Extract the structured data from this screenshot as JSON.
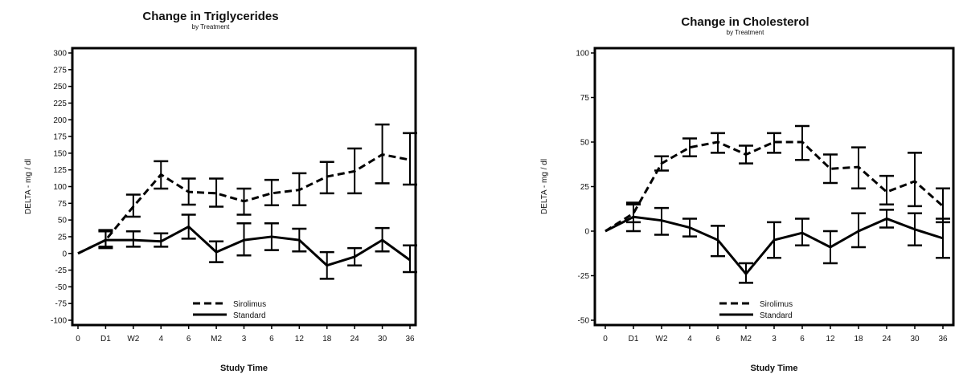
{
  "chart_data": [
    {
      "type": "line",
      "title": "Change in Triglycerides",
      "subtitle": "by Treatment",
      "xlabel": "Study Time",
      "ylabel": "DELTA - mg / dl",
      "categories": [
        "0",
        "D1",
        "W2",
        "4",
        "6",
        "M2",
        "3",
        "6",
        "12",
        "18",
        "24",
        "30",
        "36"
      ],
      "ylim": [
        -100,
        300
      ],
      "yticks": [
        "300",
        "275",
        "250",
        "225",
        "200",
        "175",
        "150",
        "125",
        "100",
        "75",
        "50",
        "25",
        "0",
        "-25",
        "-50",
        "-75",
        "-100"
      ],
      "grid": false,
      "legend_position": "bottom-center",
      "series": [
        {
          "name": "Sirolimus",
          "style": "dashed",
          "values": [
            0,
            20,
            70,
            118,
            92,
            90,
            78,
            90,
            95,
            115,
            123,
            148,
            140
          ],
          "err_low": [
            0,
            10,
            55,
            97,
            73,
            70,
            58,
            72,
            72,
            90,
            90,
            105,
            103
          ],
          "err_high": [
            0,
            35,
            88,
            138,
            112,
            112,
            97,
            110,
            120,
            137,
            157,
            193,
            180
          ]
        },
        {
          "name": "Standard",
          "style": "solid",
          "values": [
            0,
            20,
            20,
            18,
            40,
            2,
            20,
            25,
            20,
            -18,
            -5,
            20,
            -10
          ],
          "err_low": [
            0,
            8,
            10,
            10,
            22,
            -13,
            -3,
            5,
            3,
            -38,
            -18,
            3,
            -28
          ],
          "err_high": [
            0,
            33,
            33,
            30,
            58,
            18,
            45,
            45,
            37,
            2,
            8,
            38,
            12
          ]
        }
      ]
    },
    {
      "type": "line",
      "title": "Change in Cholesterol",
      "subtitle": "by Treatment",
      "xlabel": "Study Time",
      "ylabel": "DELTA - mg / dl",
      "categories": [
        "0",
        "D1",
        "W2",
        "4",
        "6",
        "M2",
        "3",
        "6",
        "12",
        "18",
        "24",
        "30",
        "36"
      ],
      "ylim": [
        -50,
        100
      ],
      "yticks": [
        "100",
        "75",
        "50",
        "25",
        "0",
        "-25",
        "-50"
      ],
      "grid": false,
      "legend_position": "bottom-center",
      "series": [
        {
          "name": "Sirolimus",
          "style": "dashed",
          "values": [
            0,
            10,
            38,
            47,
            50,
            43,
            50,
            50,
            35,
            36,
            22,
            28,
            14
          ],
          "err_low": [
            0,
            5,
            34,
            42,
            44,
            38,
            44,
            40,
            27,
            24,
            15,
            14,
            5
          ],
          "err_high": [
            0,
            16,
            42,
            52,
            55,
            48,
            55,
            59,
            43,
            47,
            31,
            44,
            24
          ]
        },
        {
          "name": "Standard",
          "style": "solid",
          "values": [
            0,
            8,
            6,
            2,
            -5,
            -24,
            -5,
            -1,
            -9,
            0,
            7,
            1,
            -4
          ],
          "err_low": [
            0,
            0,
            -2,
            -3,
            -14,
            -29,
            -15,
            -8,
            -18,
            -9,
            2,
            -8,
            -15
          ],
          "err_high": [
            0,
            15,
            13,
            7,
            3,
            -18,
            5,
            7,
            0,
            10,
            12,
            10,
            7
          ]
        }
      ]
    }
  ]
}
